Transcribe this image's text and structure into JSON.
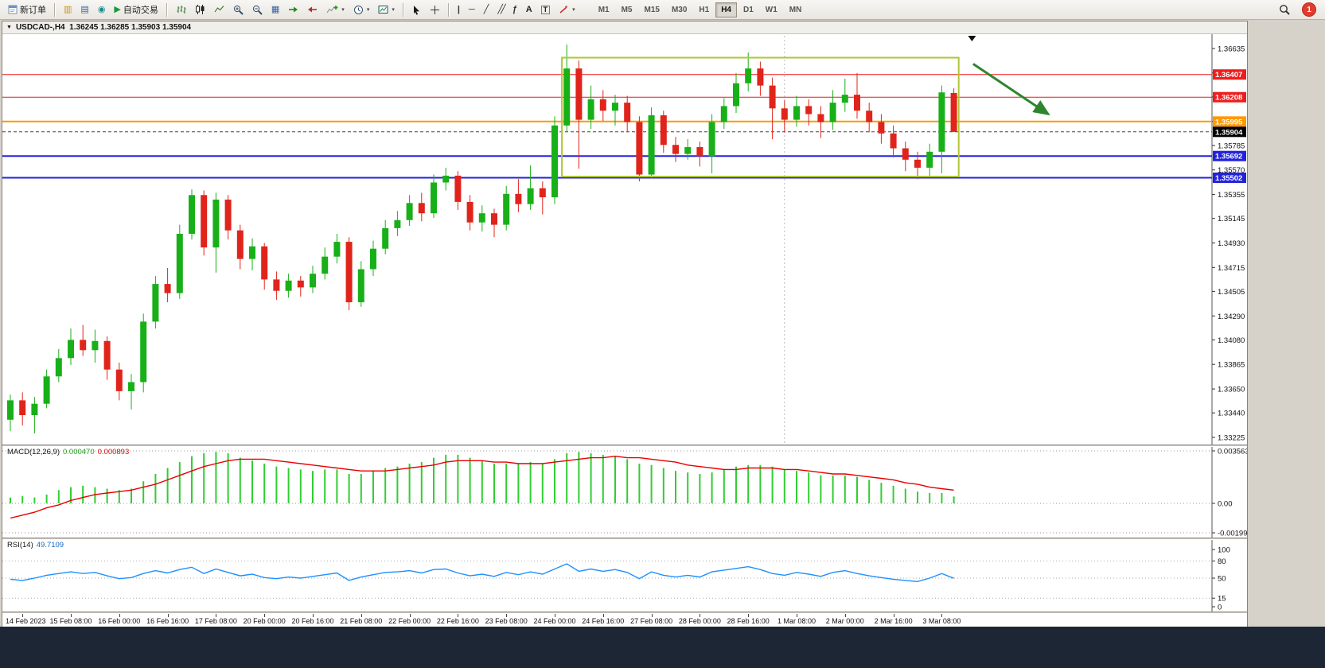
{
  "toolbar": {
    "new_order": "新订单",
    "auto_trading": "自动交易",
    "timeframes": [
      "M1",
      "M5",
      "M15",
      "M30",
      "H1",
      "H4",
      "D1",
      "W1",
      "MN"
    ],
    "active_timeframe": "H4",
    "notification_count": "1",
    "tool_icons": [
      "new-order",
      "market-watch",
      "data-window",
      "navigator",
      "auto-trading",
      "bar-chart",
      "candlestick-chart",
      "line-chart",
      "zoom-in",
      "zoom-out",
      "tile-windows",
      "auto-scroll",
      "chart-shift",
      "indicators-add",
      "periods",
      "templates",
      "cursor",
      "crosshair",
      "vertical-line",
      "horizontal-line",
      "trendline",
      "equidistant-channel",
      "fibonacci",
      "text",
      "text-label",
      "arrow-objects",
      "search"
    ]
  },
  "chart_window": {
    "title": "USDCAD-,H4  1.36245 1.36285 1.35903 1.35904"
  },
  "indicators": {
    "macd": {
      "name": "MACD(12,26,9)",
      "value_main": "0.000470",
      "value_signal": "0.000893"
    },
    "rsi": {
      "name": "RSI(14)",
      "value": "49.7109"
    }
  },
  "chart_data": {
    "type": "candlestick",
    "symbol": "USDCAD-",
    "period": "H4",
    "ohlc_current": {
      "open": "1.36245",
      "high": "1.36285",
      "low": "1.35903",
      "close": "1.35904"
    },
    "up_color": "#18b018",
    "down_color": "#e0241b",
    "price_axis": {
      "top": 1.36635,
      "bottom": 1.33225,
      "labels": [
        "1.36635",
        "1.36420",
        "1.36210",
        "1.35995",
        "1.35785",
        "1.35570",
        "1.35355",
        "1.35145",
        "1.34930",
        "1.34715",
        "1.34505",
        "1.34290",
        "1.34080",
        "1.33865",
        "1.33650",
        "1.33440",
        "1.33225"
      ]
    },
    "candles": [
      [
        1.3338,
        1.336,
        1.3328,
        1.3355
      ],
      [
        1.3355,
        1.3362,
        1.3333,
        1.3342
      ],
      [
        1.3342,
        1.3358,
        1.3326,
        1.3352
      ],
      [
        1.3352,
        1.3382,
        1.3348,
        1.3376
      ],
      [
        1.3376,
        1.34,
        1.3371,
        1.3392
      ],
      [
        1.3392,
        1.3418,
        1.3386,
        1.3408
      ],
      [
        1.3408,
        1.3421,
        1.3394,
        1.3399
      ],
      [
        1.3399,
        1.3417,
        1.3388,
        1.3407
      ],
      [
        1.3407,
        1.3411,
        1.3373,
        1.3382
      ],
      [
        1.3382,
        1.3388,
        1.3355,
        1.3363
      ],
      [
        1.3363,
        1.3378,
        1.3347,
        1.3371
      ],
      [
        1.3371,
        1.3431,
        1.3362,
        1.3424
      ],
      [
        1.3424,
        1.3464,
        1.3418,
        1.3457
      ],
      [
        1.3457,
        1.3471,
        1.3441,
        1.3449
      ],
      [
        1.3449,
        1.3509,
        1.3444,
        1.3501
      ],
      [
        1.3501,
        1.354,
        1.3496,
        1.3535
      ],
      [
        1.3535,
        1.3539,
        1.3482,
        1.3489
      ],
      [
        1.3489,
        1.3537,
        1.3467,
        1.3531
      ],
      [
        1.3531,
        1.3535,
        1.3496,
        1.3504
      ],
      [
        1.3504,
        1.3509,
        1.347,
        1.3479
      ],
      [
        1.3479,
        1.3497,
        1.3469,
        1.349
      ],
      [
        1.349,
        1.3493,
        1.3452,
        1.3461
      ],
      [
        1.3461,
        1.3468,
        1.3443,
        1.3451
      ],
      [
        1.3451,
        1.3466,
        1.3445,
        1.346
      ],
      [
        1.346,
        1.3464,
        1.3446,
        1.3454
      ],
      [
        1.3454,
        1.3473,
        1.3449,
        1.3466
      ],
      [
        1.3466,
        1.3489,
        1.3461,
        1.3481
      ],
      [
        1.3481,
        1.3501,
        1.3475,
        1.3494
      ],
      [
        1.3494,
        1.3498,
        1.3434,
        1.3441
      ],
      [
        1.3441,
        1.3477,
        1.3437,
        1.347
      ],
      [
        1.347,
        1.3495,
        1.3464,
        1.3488
      ],
      [
        1.3488,
        1.3513,
        1.3483,
        1.3506
      ],
      [
        1.3506,
        1.3521,
        1.3499,
        1.3513
      ],
      [
        1.3513,
        1.3535,
        1.3508,
        1.3528
      ],
      [
        1.3528,
        1.3537,
        1.3512,
        1.3519
      ],
      [
        1.3519,
        1.3553,
        1.3515,
        1.3546
      ],
      [
        1.3546,
        1.3559,
        1.3539,
        1.3552
      ],
      [
        1.3552,
        1.3556,
        1.3522,
        1.3529
      ],
      [
        1.3529,
        1.3535,
        1.3504,
        1.3511
      ],
      [
        1.3511,
        1.3526,
        1.3503,
        1.3519
      ],
      [
        1.3519,
        1.3523,
        1.3498,
        1.3509
      ],
      [
        1.3509,
        1.3543,
        1.3504,
        1.3536
      ],
      [
        1.3536,
        1.3549,
        1.352,
        1.3527
      ],
      [
        1.3527,
        1.3561,
        1.3522,
        1.3541
      ],
      [
        1.3541,
        1.3547,
        1.3518,
        1.3533
      ],
      [
        1.3533,
        1.3604,
        1.3527,
        1.3596
      ],
      [
        1.3596,
        1.3667,
        1.359,
        1.3646
      ],
      [
        1.3646,
        1.3653,
        1.3558,
        1.3601
      ],
      [
        1.3601,
        1.3631,
        1.3593,
        1.3619
      ],
      [
        1.3619,
        1.3627,
        1.36,
        1.3609
      ],
      [
        1.3609,
        1.3623,
        1.3596,
        1.3616
      ],
      [
        1.3616,
        1.3622,
        1.359,
        1.3599
      ],
      [
        1.3599,
        1.3604,
        1.3547,
        1.3553
      ],
      [
        1.3553,
        1.3612,
        1.355,
        1.3605
      ],
      [
        1.3605,
        1.3609,
        1.3572,
        1.3579
      ],
      [
        1.3579,
        1.3586,
        1.3564,
        1.3571
      ],
      [
        1.3571,
        1.3584,
        1.3566,
        1.3577
      ],
      [
        1.3577,
        1.3582,
        1.356,
        1.3569
      ],
      [
        1.3569,
        1.3606,
        1.3554,
        1.3599
      ],
      [
        1.3599,
        1.362,
        1.3593,
        1.3613
      ],
      [
        1.3613,
        1.3642,
        1.3607,
        1.3633
      ],
      [
        1.3633,
        1.366,
        1.3626,
        1.3646
      ],
      [
        1.3646,
        1.3652,
        1.3622,
        1.3631
      ],
      [
        1.3631,
        1.3638,
        1.3584,
        1.3611
      ],
      [
        1.3611,
        1.3618,
        1.359,
        1.3601
      ],
      [
        1.3601,
        1.3622,
        1.3595,
        1.3613
      ],
      [
        1.3613,
        1.3619,
        1.3596,
        1.3606
      ],
      [
        1.3606,
        1.3613,
        1.3585,
        1.3599
      ],
      [
        1.3599,
        1.3627,
        1.3592,
        1.3616
      ],
      [
        1.3616,
        1.3637,
        1.3608,
        1.3623
      ],
      [
        1.3623,
        1.3642,
        1.3602,
        1.3609
      ],
      [
        1.3609,
        1.3616,
        1.359,
        1.3599
      ],
      [
        1.3599,
        1.3606,
        1.358,
        1.3589
      ],
      [
        1.3589,
        1.3596,
        1.3568,
        1.3576
      ],
      [
        1.3576,
        1.3582,
        1.3556,
        1.3566
      ],
      [
        1.3566,
        1.3573,
        1.3549,
        1.3559
      ],
      [
        1.3559,
        1.358,
        1.3552,
        1.3573
      ],
      [
        1.3573,
        1.3631,
        1.3554,
        1.3625
      ],
      [
        1.36245,
        1.36285,
        1.35903,
        1.35904
      ]
    ],
    "h_lines": [
      {
        "name": "resistance-line-upper",
        "price": 1.36407,
        "label": "1.36407",
        "color": "#ee1c1c",
        "width": 1
      },
      {
        "name": "resistance-line-lower",
        "price": 1.36208,
        "label": "1.36208",
        "color": "#ee1c1c",
        "width": 1
      },
      {
        "name": "pivot-line-orange",
        "price": 1.35995,
        "label": "1.35995",
        "color": "#ff9900",
        "width": 2
      },
      {
        "name": "support-line-upper",
        "price": 1.35692,
        "label": "1.35692",
        "color": "#2222dd",
        "width": 2
      },
      {
        "name": "support-line-lower",
        "price": 1.35502,
        "label": "1.35502",
        "color": "#2222dd",
        "width": 2
      }
    ],
    "current_price": {
      "price": 1.35904,
      "label": "1.35904",
      "color": "#000000"
    },
    "separator_index": 64,
    "shift_marker_index": 79.5,
    "annotations": {
      "rect": {
        "i1": 45.6,
        "i2": 78.4,
        "price_top": 1.36555,
        "price_bottom": 1.35512,
        "color": "#b2c437"
      },
      "arrow": {
        "i1": 79.6,
        "p1": 1.365,
        "i2": 85.8,
        "p2": 1.3606,
        "color": "#2d862d"
      }
    },
    "macd": {
      "axis_labels": [
        "0.003563",
        "0.00",
        "-0.001998"
      ],
      "histogram_color": "#32cd32",
      "signal_color": "#e80000",
      "histogram": [
        0.0004,
        0.0005,
        0.0004,
        0.0006,
        0.0009,
        0.0011,
        0.0012,
        0.0011,
        0.001,
        0.0009,
        0.001,
        0.0015,
        0.002,
        0.0024,
        0.0028,
        0.0032,
        0.0034,
        0.0035,
        0.0034,
        0.0031,
        0.0029,
        0.0027,
        0.0025,
        0.0024,
        0.0023,
        0.0022,
        0.0023,
        0.0023,
        0.002,
        0.002,
        0.0022,
        0.0024,
        0.0025,
        0.0027,
        0.0028,
        0.0031,
        0.0033,
        0.0033,
        0.0031,
        0.0029,
        0.0027,
        0.0027,
        0.0027,
        0.0028,
        0.0027,
        0.003,
        0.0034,
        0.0035,
        0.0034,
        0.0033,
        0.0032,
        0.003,
        0.0027,
        0.0026,
        0.0024,
        0.0022,
        0.0021,
        0.002,
        0.0021,
        0.0023,
        0.0025,
        0.0026,
        0.0026,
        0.0025,
        0.0023,
        0.0022,
        0.0021,
        0.0019,
        0.0019,
        0.0019,
        0.0018,
        0.0016,
        0.0014,
        0.0012,
        0.001,
        0.0008,
        0.0007,
        0.0007,
        0.00047
      ],
      "signal": [
        -0.001,
        -0.0008,
        -0.0006,
        -0.0003,
        -0.0001,
        0.0002,
        0.0004,
        0.0006,
        0.0007,
        0.0008,
        0.0009,
        0.0011,
        0.0013,
        0.0016,
        0.0019,
        0.0022,
        0.0025,
        0.0027,
        0.0029,
        0.003,
        0.003,
        0.003,
        0.0029,
        0.0028,
        0.0027,
        0.0026,
        0.0025,
        0.0024,
        0.0023,
        0.0022,
        0.0022,
        0.0022,
        0.0023,
        0.0024,
        0.0025,
        0.0026,
        0.0028,
        0.0029,
        0.0029,
        0.0029,
        0.0028,
        0.0028,
        0.0027,
        0.0027,
        0.0027,
        0.0028,
        0.0029,
        0.003,
        0.0031,
        0.0031,
        0.0032,
        0.0031,
        0.0031,
        0.003,
        0.0029,
        0.0028,
        0.0026,
        0.0025,
        0.0024,
        0.0023,
        0.0023,
        0.0024,
        0.0024,
        0.0024,
        0.0023,
        0.0023,
        0.0022,
        0.0021,
        0.002,
        0.002,
        0.0019,
        0.0018,
        0.0017,
        0.0016,
        0.0014,
        0.0013,
        0.0011,
        0.001,
        0.0009
      ]
    },
    "rsi": {
      "axis_labels": [
        "100",
        "80",
        "50",
        "15",
        "0"
      ],
      "levels": [
        80,
        50,
        15
      ],
      "line_color": "#1e90ff",
      "values": [
        48,
        46,
        50,
        55,
        58,
        61,
        58,
        60,
        54,
        49,
        51,
        58,
        63,
        59,
        65,
        69,
        58,
        66,
        60,
        54,
        57,
        51,
        49,
        52,
        50,
        53,
        56,
        59,
        46,
        52,
        56,
        60,
        61,
        63,
        59,
        65,
        66,
        59,
        54,
        57,
        53,
        60,
        56,
        61,
        57,
        66,
        75,
        62,
        66,
        62,
        65,
        60,
        49,
        61,
        55,
        52,
        55,
        52,
        61,
        64,
        67,
        70,
        65,
        58,
        55,
        60,
        57,
        53,
        60,
        63,
        58,
        54,
        51,
        48,
        46,
        44,
        50,
        58,
        49.71
      ]
    },
    "time_axis": {
      "labels": [
        "14 Feb 2023",
        "15 Feb 08:00",
        "16 Feb 00:00",
        "16 Feb 16:00",
        "17 Feb 08:00",
        "20 Feb 00:00",
        "20 Feb 16:00",
        "21 Feb 08:00",
        "22 Feb 00:00",
        "22 Feb 16:00",
        "23 Feb 08:00",
        "24 Feb 00:00",
        "24 Feb 16:00",
        "27 Feb 08:00",
        "28 Feb 00:00",
        "28 Feb 16:00",
        "1 Mar 08:00",
        "2 Mar 00:00",
        "2 Mar 16:00",
        "3 Mar 08:00"
      ]
    }
  }
}
